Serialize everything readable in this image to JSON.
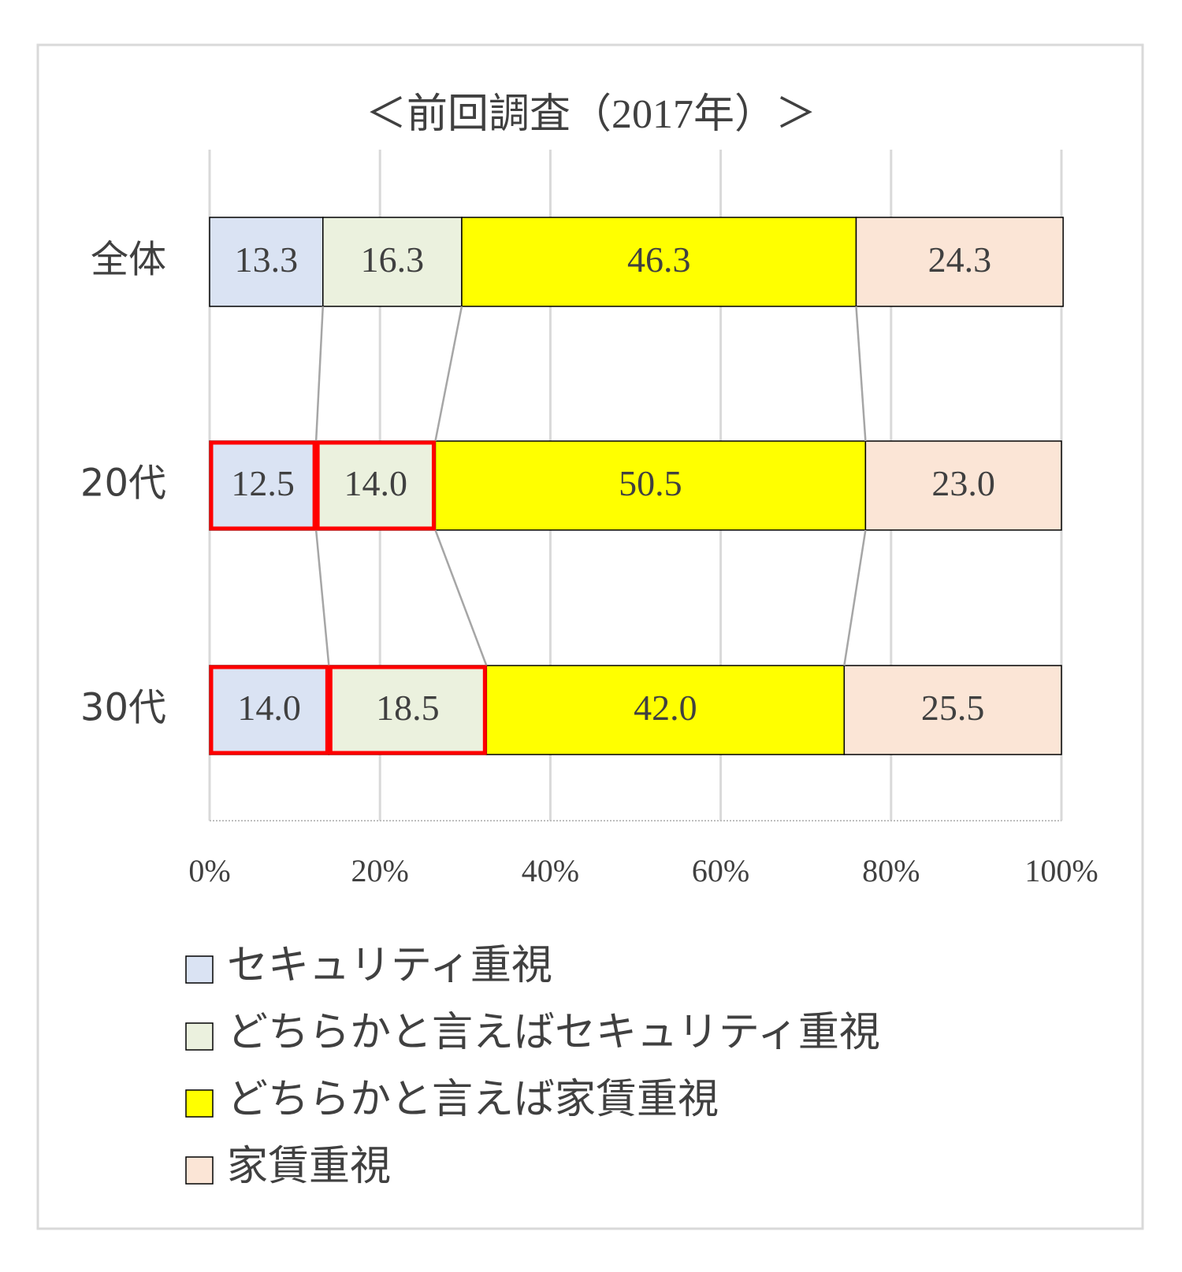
{
  "chart_data": {
    "type": "stacked_bar_horizontal",
    "title": "＜前回調査（2017年）＞",
    "categories": [
      "全体",
      "20代",
      "30代"
    ],
    "series": [
      {
        "name": "セキュリティ重視",
        "color": "#dae3f3",
        "values": [
          13.3,
          12.5,
          14.0
        ],
        "value_labels": [
          "13.3",
          "12.5",
          "14.0"
        ]
      },
      {
        "name": "どちらかと言えばセキュリティ重視",
        "color": "#ebf1de",
        "values": [
          16.3,
          14.0,
          18.5
        ],
        "value_labels": [
          "16.3",
          "14.0",
          "18.5"
        ]
      },
      {
        "name": "どちらかと言えば家賃重視",
        "color": "#ffff00",
        "values": [
          46.3,
          50.5,
          42.0
        ],
        "value_labels": [
          "46.3",
          "50.5",
          "42.0"
        ]
      },
      {
        "name": "家賃重視",
        "color": "#fbe5d6",
        "values": [
          24.3,
          23.0,
          25.5
        ],
        "value_labels": [
          "24.3",
          "23.0",
          "25.5"
        ]
      }
    ],
    "xlim": [
      0,
      100
    ],
    "xticks": [
      {
        "value": 0,
        "label": "0%"
      },
      {
        "value": 20,
        "label": "20%"
      },
      {
        "value": 40,
        "label": "40%"
      },
      {
        "value": 60,
        "label": "60%"
      },
      {
        "value": 80,
        "label": "80%"
      },
      {
        "value": 100,
        "label": "100%"
      }
    ],
    "grid": true
  }
}
